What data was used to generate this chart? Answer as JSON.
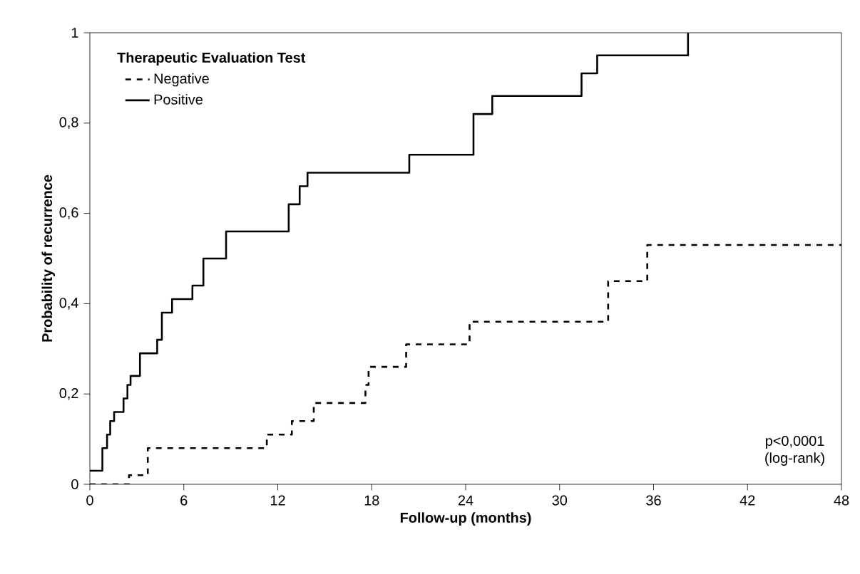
{
  "chart_data": {
    "type": "step",
    "xlabel": "Follow-up (months)",
    "ylabel": "Probability of recurrence",
    "legend_title": "Therapeutic Evaluation Test",
    "legend": "top left",
    "xlim": [
      0,
      48
    ],
    "xticks": [
      0,
      6,
      12,
      18,
      24,
      30,
      36,
      42,
      48
    ],
    "ylim": [
      0,
      1
    ],
    "yticks": [
      0,
      {
        "value": 0.2,
        "label": "0,2"
      },
      {
        "value": 0.4,
        "label": "0,4"
      },
      {
        "value": 0.6,
        "label": "0,6"
      },
      {
        "value": 0.8,
        "label": "0,8"
      },
      1
    ],
    "annotations": [
      "p<0,0001",
      "(log-rank)"
    ],
    "series": [
      {
        "name": "Negative",
        "color": "#000000",
        "line_style": "dashed",
        "x": [
          0,
          2.5,
          3.7,
          11.3,
          12.9,
          14.3,
          17.6,
          17.8,
          20.2,
          24.25,
          33.1,
          35.6,
          48
        ],
        "values": [
          0,
          0.02,
          0.08,
          0.11,
          0.14,
          0.18,
          0.22,
          0.26,
          0.31,
          0.36,
          0.45,
          0.53,
          0.53
        ]
      },
      {
        "name": "Positive",
        "color": "#000000",
        "line_style": "solid",
        "x": [
          0,
          0.8,
          1.1,
          1.3,
          1.55,
          2.15,
          2.4,
          2.6,
          3.2,
          4.3,
          4.6,
          5.25,
          6.55,
          7.25,
          8.7,
          12.7,
          13.4,
          13.9,
          20.4,
          24.5,
          25.7,
          31.4,
          32.4,
          38.2
        ],
        "values": [
          0.03,
          0.08,
          0.11,
          0.14,
          0.16,
          0.19,
          0.22,
          0.24,
          0.29,
          0.32,
          0.38,
          0.41,
          0.44,
          0.5,
          0.56,
          0.62,
          0.66,
          0.69,
          0.73,
          0.82,
          0.86,
          0.91,
          0.95,
          1.0
        ]
      }
    ]
  }
}
